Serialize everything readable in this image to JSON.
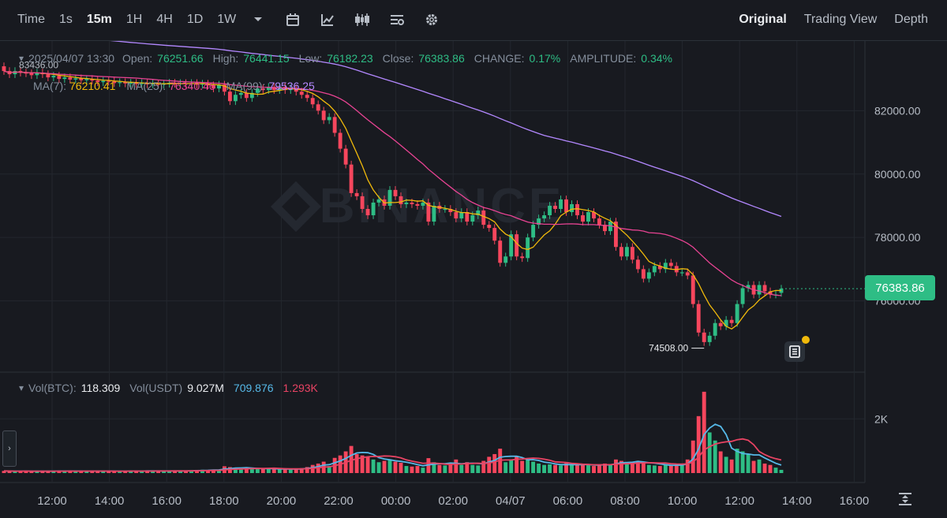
{
  "toolbar": {
    "time_label": "Time",
    "intervals": [
      "1s",
      "15m",
      "1H",
      "4H",
      "1D",
      "1W"
    ],
    "active_interval": "15m",
    "views": [
      "Original",
      "Trading View",
      "Depth"
    ],
    "active_view": "Original"
  },
  "ohlc": {
    "datetime": "2025/04/07 13:30",
    "open_label": "Open:",
    "open": "76251.66",
    "high_label": "High:",
    "high": "76441.15",
    "low_label": "Low:",
    "low": "76182.23",
    "close_label": "Close:",
    "close": "76383.86",
    "change_label": "CHANGE:",
    "change": "0.17%",
    "amplitude_label": "AMPLITUDE:",
    "amplitude": "0.34%"
  },
  "ma_legend": {
    "ma7_label": "MA(7):",
    "ma7": "76210.41",
    "ma25_label": "MA(25):",
    "ma25": "76340.46",
    "ma99_label": "MA(99):",
    "ma99": "79536.25"
  },
  "volume_legend": {
    "btc_label": "Vol(BTC):",
    "btc": "118.309",
    "usdt_label": "Vol(USDT)",
    "usdt": "9.027M",
    "ma1": "709.876",
    "ma2": "1.293K"
  },
  "price_axis": {
    "ticks": [
      "82000.00",
      "80000.00",
      "78000.00",
      "76000.00"
    ],
    "top_marker": "83436.00",
    "low_marker": "74508.00",
    "current": "76383.86"
  },
  "volume_axis": {
    "ticks": [
      "2K"
    ]
  },
  "time_axis": {
    "ticks": [
      "12:00",
      "14:00",
      "16:00",
      "18:00",
      "20:00",
      "22:00",
      "00:00",
      "02:00",
      "04/07",
      "06:00",
      "08:00",
      "10:00",
      "12:00",
      "14:00",
      "16:00"
    ]
  },
  "watermark": "BINANCE",
  "colors": {
    "up": "#2ebd85",
    "down": "#f6465d",
    "ma7": "#f0b90b",
    "ma25": "#e84393",
    "ma99": "#b388ff",
    "vol_ma1": "#56b9e8",
    "vol_ma2": "#e84363",
    "background": "#181a20",
    "grid": "#23272e"
  },
  "icons": [
    "chevron-down-icon",
    "indicators-icon",
    "draw-icon",
    "candles-icon",
    "settings-sliders-icon",
    "gear-icon",
    "fit-expand-icon"
  ],
  "chart_data": {
    "type": "candlestick",
    "interval": "15m",
    "ylim": [
      74000,
      83700
    ],
    "vol_ylim": [
      0,
      3200
    ],
    "candles": [
      {
        "o": 83400,
        "c": 83250,
        "v": 80
      },
      {
        "o": 83250,
        "c": 83150,
        "v": 70
      },
      {
        "o": 83150,
        "c": 83250,
        "v": 60
      },
      {
        "o": 83250,
        "c": 83200,
        "v": 70
      },
      {
        "o": 83200,
        "c": 83180,
        "v": 80
      },
      {
        "o": 83180,
        "c": 83120,
        "v": 60
      },
      {
        "o": 83120,
        "c": 83200,
        "v": 70
      },
      {
        "o": 83200,
        "c": 83150,
        "v": 60
      },
      {
        "o": 83150,
        "c": 83050,
        "v": 80
      },
      {
        "o": 83050,
        "c": 83100,
        "v": 70
      },
      {
        "o": 83100,
        "c": 83000,
        "v": 90
      },
      {
        "o": 83000,
        "c": 83050,
        "v": 60
      },
      {
        "o": 83050,
        "c": 82980,
        "v": 80
      },
      {
        "o": 82980,
        "c": 83020,
        "v": 60
      },
      {
        "o": 83020,
        "c": 82960,
        "v": 70
      },
      {
        "o": 82960,
        "c": 83000,
        "v": 80
      },
      {
        "o": 83000,
        "c": 82950,
        "v": 70
      },
      {
        "o": 82950,
        "c": 82900,
        "v": 80
      },
      {
        "o": 82900,
        "c": 82940,
        "v": 60
      },
      {
        "o": 82940,
        "c": 82920,
        "v": 70
      },
      {
        "o": 82920,
        "c": 82870,
        "v": 80
      },
      {
        "o": 82870,
        "c": 82900,
        "v": 60
      },
      {
        "o": 82900,
        "c": 82860,
        "v": 70
      },
      {
        "o": 82860,
        "c": 82880,
        "v": 80
      },
      {
        "o": 82880,
        "c": 82840,
        "v": 70
      },
      {
        "o": 82840,
        "c": 82870,
        "v": 90
      },
      {
        "o": 82870,
        "c": 82830,
        "v": 80
      },
      {
        "o": 82830,
        "c": 82860,
        "v": 70
      },
      {
        "o": 82860,
        "c": 82820,
        "v": 90
      },
      {
        "o": 82820,
        "c": 82850,
        "v": 70
      },
      {
        "o": 82850,
        "c": 82880,
        "v": 80
      },
      {
        "o": 82880,
        "c": 82850,
        "v": 90
      },
      {
        "o": 82850,
        "c": 82870,
        "v": 70
      },
      {
        "o": 82870,
        "c": 82840,
        "v": 80
      },
      {
        "o": 82840,
        "c": 82870,
        "v": 100
      },
      {
        "o": 82870,
        "c": 82820,
        "v": 110
      },
      {
        "o": 82820,
        "c": 82850,
        "v": 120
      },
      {
        "o": 82850,
        "c": 82800,
        "v": 100
      },
      {
        "o": 82800,
        "c": 82700,
        "v": 130
      },
      {
        "o": 82700,
        "c": 82820,
        "v": 120
      },
      {
        "o": 82820,
        "c": 82600,
        "v": 250
      },
      {
        "o": 82600,
        "c": 82300,
        "v": 220
      },
      {
        "o": 82300,
        "c": 82500,
        "v": 200
      },
      {
        "o": 82500,
        "c": 82560,
        "v": 150
      },
      {
        "o": 82560,
        "c": 82400,
        "v": 170
      },
      {
        "o": 82400,
        "c": 82560,
        "v": 180
      },
      {
        "o": 82560,
        "c": 82700,
        "v": 160
      },
      {
        "o": 82700,
        "c": 82650,
        "v": 150
      },
      {
        "o": 82650,
        "c": 82750,
        "v": 160
      },
      {
        "o": 82750,
        "c": 82650,
        "v": 150
      },
      {
        "o": 82650,
        "c": 82750,
        "v": 140
      },
      {
        "o": 82750,
        "c": 82650,
        "v": 150
      },
      {
        "o": 82650,
        "c": 82700,
        "v": 130
      },
      {
        "o": 82700,
        "c": 82600,
        "v": 160
      },
      {
        "o": 82600,
        "c": 82500,
        "v": 180
      },
      {
        "o": 82500,
        "c": 82400,
        "v": 220
      },
      {
        "o": 82400,
        "c": 82200,
        "v": 300
      },
      {
        "o": 82200,
        "c": 82000,
        "v": 350
      },
      {
        "o": 82000,
        "c": 81700,
        "v": 420
      },
      {
        "o": 81700,
        "c": 81800,
        "v": 260
      },
      {
        "o": 81800,
        "c": 81300,
        "v": 560
      },
      {
        "o": 81300,
        "c": 80800,
        "v": 650
      },
      {
        "o": 80800,
        "c": 80300,
        "v": 800
      },
      {
        "o": 80300,
        "c": 79400,
        "v": 1000
      },
      {
        "o": 79400,
        "c": 79300,
        "v": 700
      },
      {
        "o": 79300,
        "c": 78900,
        "v": 650
      },
      {
        "o": 78900,
        "c": 78700,
        "v": 600
      },
      {
        "o": 78700,
        "c": 79100,
        "v": 500
      },
      {
        "o": 79100,
        "c": 79200,
        "v": 400
      },
      {
        "o": 79200,
        "c": 79000,
        "v": 450
      },
      {
        "o": 79000,
        "c": 79500,
        "v": 500
      },
      {
        "o": 79500,
        "c": 79300,
        "v": 420
      },
      {
        "o": 79300,
        "c": 79050,
        "v": 380
      },
      {
        "o": 79050,
        "c": 79100,
        "v": 260
      },
      {
        "o": 79100,
        "c": 79050,
        "v": 240
      },
      {
        "o": 79050,
        "c": 79000,
        "v": 260
      },
      {
        "o": 79000,
        "c": 79100,
        "v": 200
      },
      {
        "o": 79100,
        "c": 78500,
        "v": 550
      },
      {
        "o": 78500,
        "c": 79000,
        "v": 400
      },
      {
        "o": 79000,
        "c": 78900,
        "v": 300
      },
      {
        "o": 78900,
        "c": 78900,
        "v": 280
      },
      {
        "o": 78900,
        "c": 78800,
        "v": 320
      },
      {
        "o": 78800,
        "c": 78600,
        "v": 500
      },
      {
        "o": 78600,
        "c": 78800,
        "v": 300
      },
      {
        "o": 78800,
        "c": 78500,
        "v": 400
      },
      {
        "o": 78500,
        "c": 78700,
        "v": 300
      },
      {
        "o": 78700,
        "c": 78850,
        "v": 280
      },
      {
        "o": 78850,
        "c": 78400,
        "v": 450
      },
      {
        "o": 78400,
        "c": 78300,
        "v": 600
      },
      {
        "o": 78300,
        "c": 77900,
        "v": 700
      },
      {
        "o": 77900,
        "c": 77200,
        "v": 900
      },
      {
        "o": 77200,
        "c": 77400,
        "v": 400
      },
      {
        "o": 77400,
        "c": 78100,
        "v": 500
      },
      {
        "o": 78100,
        "c": 77400,
        "v": 600
      },
      {
        "o": 77400,
        "c": 77350,
        "v": 450
      },
      {
        "o": 77350,
        "c": 78000,
        "v": 500
      },
      {
        "o": 78000,
        "c": 78400,
        "v": 420
      },
      {
        "o": 78400,
        "c": 78600,
        "v": 350
      },
      {
        "o": 78600,
        "c": 78700,
        "v": 300
      },
      {
        "o": 78700,
        "c": 79000,
        "v": 320
      },
      {
        "o": 79000,
        "c": 78900,
        "v": 300
      },
      {
        "o": 78900,
        "c": 79200,
        "v": 280
      },
      {
        "o": 79200,
        "c": 78800,
        "v": 360
      },
      {
        "o": 78800,
        "c": 79050,
        "v": 300
      },
      {
        "o": 79050,
        "c": 78700,
        "v": 300
      },
      {
        "o": 78700,
        "c": 78500,
        "v": 320
      },
      {
        "o": 78500,
        "c": 78800,
        "v": 300
      },
      {
        "o": 78800,
        "c": 78600,
        "v": 260
      },
      {
        "o": 78600,
        "c": 78400,
        "v": 300
      },
      {
        "o": 78400,
        "c": 78200,
        "v": 350
      },
      {
        "o": 78200,
        "c": 78500,
        "v": 300
      },
      {
        "o": 78500,
        "c": 77700,
        "v": 500
      },
      {
        "o": 77700,
        "c": 77400,
        "v": 450
      },
      {
        "o": 77400,
        "c": 77700,
        "v": 350
      },
      {
        "o": 77700,
        "c": 77300,
        "v": 400
      },
      {
        "o": 77300,
        "c": 77000,
        "v": 450
      },
      {
        "o": 77000,
        "c": 76700,
        "v": 400
      },
      {
        "o": 76700,
        "c": 76900,
        "v": 300
      },
      {
        "o": 76900,
        "c": 77100,
        "v": 280
      },
      {
        "o": 77100,
        "c": 77000,
        "v": 260
      },
      {
        "o": 77000,
        "c": 77200,
        "v": 300
      },
      {
        "o": 77200,
        "c": 77100,
        "v": 280
      },
      {
        "o": 77100,
        "c": 76900,
        "v": 320
      },
      {
        "o": 76900,
        "c": 76900,
        "v": 300
      },
      {
        "o": 76900,
        "c": 76800,
        "v": 500
      },
      {
        "o": 76800,
        "c": 75900,
        "v": 1200
      },
      {
        "o": 75900,
        "c": 75000,
        "v": 2100
      },
      {
        "o": 75000,
        "c": 74700,
        "v": 3000
      },
      {
        "o": 74700,
        "c": 74900,
        "v": 1500
      },
      {
        "o": 74900,
        "c": 75300,
        "v": 1200
      },
      {
        "o": 75300,
        "c": 75200,
        "v": 800
      },
      {
        "o": 75200,
        "c": 75400,
        "v": 600
      },
      {
        "o": 75400,
        "c": 75300,
        "v": 500
      },
      {
        "o": 75300,
        "c": 75900,
        "v": 900
      },
      {
        "o": 75900,
        "c": 76400,
        "v": 800
      },
      {
        "o": 76400,
        "c": 76500,
        "v": 700
      },
      {
        "o": 76500,
        "c": 76200,
        "v": 450
      },
      {
        "o": 76200,
        "c": 76500,
        "v": 500
      },
      {
        "o": 76500,
        "c": 76300,
        "v": 350
      },
      {
        "o": 76300,
        "c": 76200,
        "v": 300
      },
      {
        "o": 76200,
        "c": 76200,
        "v": 200
      },
      {
        "o": 76251.66,
        "c": 76383.86,
        "v": 118
      }
    ]
  }
}
